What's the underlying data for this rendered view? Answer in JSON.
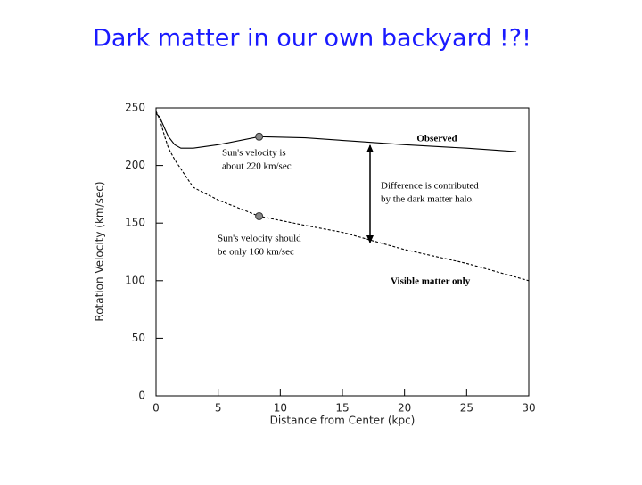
{
  "title": "Dark matter in our own backyard !?!",
  "chart_data": {
    "type": "line",
    "xlabel": "Distance from Center (kpc)",
    "ylabel": "Rotation Velocity (km/sec)",
    "xlim": [
      0,
      30
    ],
    "ylim": [
      0,
      250
    ],
    "xticks": [
      0,
      5,
      10,
      15,
      20,
      25,
      30
    ],
    "yticks": [
      0,
      50,
      100,
      150,
      200,
      250
    ],
    "series": [
      {
        "name": "Observed",
        "color": "#000000",
        "x": [
          0,
          0.3,
          0.7,
          1,
          1.5,
          2,
          3,
          5,
          8.3,
          12,
          16,
          20,
          25,
          29
        ],
        "values": [
          245,
          242,
          232,
          225,
          218,
          215,
          215,
          218,
          225,
          224,
          221,
          218,
          215,
          212
        ]
      },
      {
        "name": "Visible matter only",
        "color": "#000000",
        "x": [
          0,
          0.3,
          0.7,
          1,
          1.5,
          2,
          3,
          5,
          8.3,
          12,
          15,
          20,
          25,
          30
        ],
        "values": [
          247,
          240,
          225,
          215,
          205,
          197,
          181,
          170,
          156,
          148,
          142,
          127,
          115,
          100
        ]
      }
    ],
    "markers": {
      "color": "#888888",
      "x": [
        8.3,
        8.3
      ],
      "values": [
        225,
        156
      ]
    },
    "annotations": [
      [
        "Sun's velocity is",
        "about 220 km/sec"
      ],
      [
        "Difference is contributed",
        "by the dark matter halo."
      ],
      [
        "Sun's velocity should",
        "be only 160 km/sec"
      ]
    ]
  }
}
